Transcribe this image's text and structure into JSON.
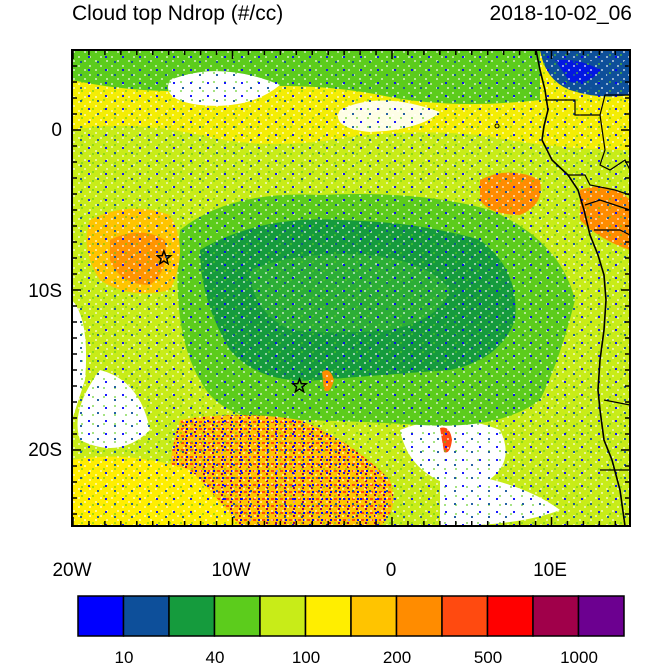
{
  "title": "Cloud top Ndrop (#/cc)",
  "timestamp": "2018-10-02_06",
  "lat_labels": [
    "0",
    "10S",
    "20S"
  ],
  "lon_labels": [
    "20W",
    "10W",
    "0",
    "10E"
  ],
  "colorbar": {
    "colors": [
      "#0000ff",
      "#0d4f9a",
      "#159b3d",
      "#5ccc1c",
      "#c8ec18",
      "#ffee00",
      "#ffc400",
      "#ff8c00",
      "#ff4a10",
      "#ff0000",
      "#a0004a",
      "#6c0090"
    ],
    "labels": [
      "10",
      "40",
      "100",
      "200",
      "500",
      "1000"
    ]
  },
  "markers": [
    {
      "name": "star",
      "lon": -14.3,
      "lat": -8.0
    },
    {
      "name": "star",
      "lon": -5.8,
      "lat": -16.0
    }
  ]
}
